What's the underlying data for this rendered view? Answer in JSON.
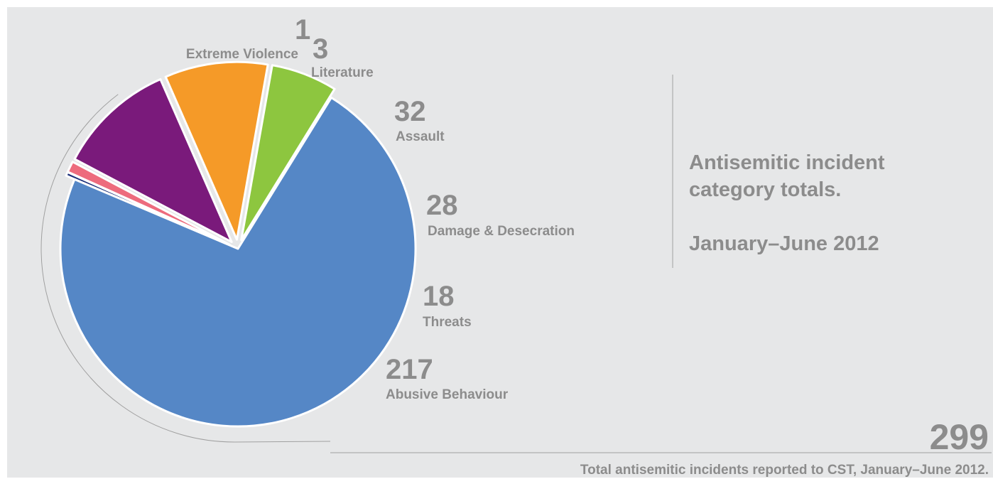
{
  "title": {
    "line1": "Antisemitic incident",
    "line2": "category totals.",
    "period": "January–June 2012"
  },
  "total": {
    "value": "299",
    "caption": "Total antisemitic incidents reported to CST, January–June 2012."
  },
  "chart_data": {
    "type": "pie",
    "title": "Antisemitic incident category totals. January–June 2012",
    "total": 299,
    "slices": [
      {
        "label": "Extreme Violence",
        "value": 1,
        "color": "#1c2f7a"
      },
      {
        "label": "Literature",
        "value": 3,
        "color": "#ed6b7d"
      },
      {
        "label": "Assault",
        "value": 32,
        "color": "#7a1a7b"
      },
      {
        "label": "Damage & Desecration",
        "value": 28,
        "color": "#f59a28"
      },
      {
        "label": "Threats",
        "value": 18,
        "color": "#8dc63f"
      },
      {
        "label": "Abusive Behaviour",
        "value": 217,
        "color": "#5587c6"
      }
    ],
    "legend": "none"
  }
}
